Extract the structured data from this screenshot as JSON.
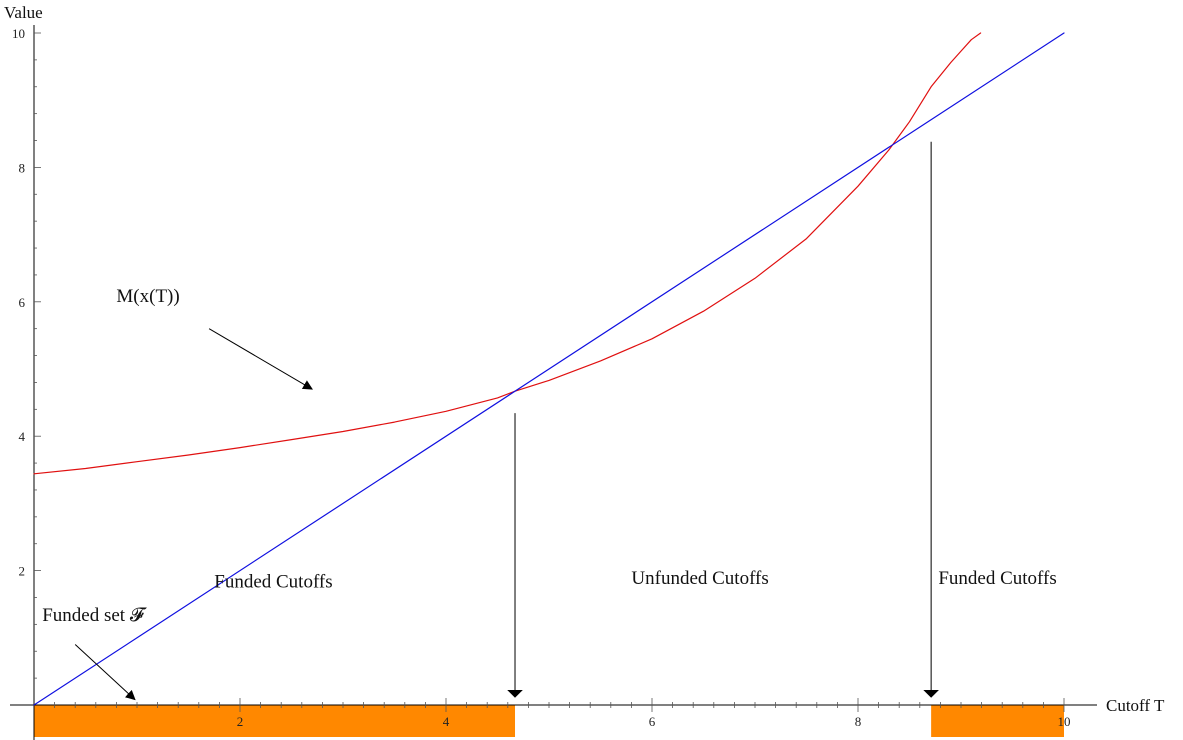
{
  "chart_data": {
    "type": "line",
    "xlabel": "Cutoff T",
    "ylabel": "Value",
    "xlim": [
      0,
      10
    ],
    "ylim": [
      0,
      10
    ],
    "x_ticks": [
      2,
      4,
      6,
      8,
      10
    ],
    "y_ticks": [
      2,
      4,
      6,
      8,
      10
    ],
    "x_minor_step": 0.2,
    "y_minor_step": 0.4,
    "grid": false,
    "series": [
      {
        "name": "M(x(T))",
        "color": "#e01010",
        "x": [
          0,
          0.5,
          1,
          1.5,
          2,
          2.5,
          3,
          3.5,
          4,
          4.5,
          4.67,
          5,
          5.5,
          6,
          6.5,
          7,
          7.5,
          8,
          8.3,
          8.5,
          8.71,
          8.9,
          9.0,
          9.1,
          9.19
        ],
        "y": [
          3.44,
          3.52,
          3.62,
          3.72,
          3.83,
          3.95,
          4.07,
          4.21,
          4.37,
          4.57,
          4.67,
          4.83,
          5.12,
          5.45,
          5.86,
          6.35,
          6.94,
          7.72,
          8.26,
          8.68,
          9.2,
          9.56,
          9.73,
          9.9,
          10.0
        ]
      },
      {
        "name": "",
        "color": "#1010e0",
        "x": [
          0,
          10
        ],
        "y": [
          0,
          10
        ]
      }
    ],
    "funded_intervals": [
      [
        0,
        4.67
      ],
      [
        8.71,
        10
      ]
    ],
    "funded_color": "#ff8800",
    "crossings": [
      4.67,
      8.71
    ],
    "annotations": [
      {
        "id": "m-label",
        "text": "M(x(T))",
        "text_x": 0.8,
        "text_y": 6.0,
        "arrow_from": [
          1.7,
          5.6
        ],
        "arrow_to": [
          2.7,
          4.7
        ]
      },
      {
        "id": "funded-set-label",
        "text": "Funded set 𝓕",
        "text_x": 0.08,
        "text_y": 1.25,
        "arrow_from": [
          0.4,
          0.9
        ],
        "arrow_to": [
          0.98,
          0.08
        ]
      },
      {
        "id": "funded-cutoffs-left",
        "text": "Funded Cutoffs",
        "text_x": 1.75,
        "text_y": 1.75
      },
      {
        "id": "unfunded-cutoffs",
        "text": "Unfunded Cutoffs",
        "text_x": 5.8,
        "text_y": 1.8
      },
      {
        "id": "funded-cutoffs-right",
        "text": "Funded Cutoffs",
        "text_x": 8.78,
        "text_y": 1.8
      }
    ]
  }
}
